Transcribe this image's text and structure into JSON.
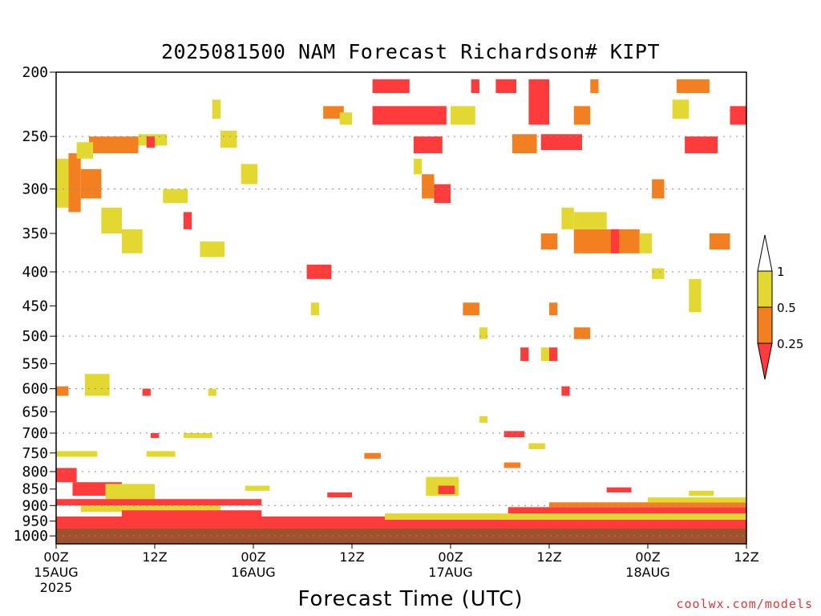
{
  "title": "2025081500 NAM Forecast Richardson# KIPT",
  "xlabel": "Forecast Time (UTC)",
  "credit": "coolwx.com/models",
  "chart_data": {
    "type": "heatmap",
    "title": "2025081500 NAM Forecast Richardson# KIPT",
    "xlabel": "Forecast Time (UTC)",
    "ylabel": "",
    "x_unit": "forecast hour",
    "xlim": [
      0,
      84
    ],
    "y_unit": "hPa",
    "ylim": [
      1000,
      200
    ],
    "y_scale": "log (pressure)",
    "grid": "dotted horizontal lines at labeled pressure levels",
    "y_ticks": [
      200,
      250,
      300,
      350,
      400,
      450,
      500,
      550,
      600,
      650,
      700,
      750,
      800,
      850,
      900,
      950,
      1000
    ],
    "y_gridlines": [
      250,
      300,
      400,
      500,
      600,
      700,
      800,
      900,
      1000
    ],
    "x_ticks": [
      {
        "hour": 0,
        "label": "00Z",
        "sub": "15AUG",
        "sub2": "2025"
      },
      {
        "hour": 12,
        "label": "12Z",
        "sub": "",
        "sub2": ""
      },
      {
        "hour": 24,
        "label": "00Z",
        "sub": "16AUG",
        "sub2": ""
      },
      {
        "hour": 36,
        "label": "12Z",
        "sub": "",
        "sub2": ""
      },
      {
        "hour": 48,
        "label": "00Z",
        "sub": "17AUG",
        "sub2": ""
      },
      {
        "hour": 60,
        "label": "12Z",
        "sub": "",
        "sub2": ""
      },
      {
        "hour": 72,
        "label": "00Z",
        "sub": "18AUG",
        "sub2": ""
      },
      {
        "hour": 84,
        "label": "12Z",
        "sub": "",
        "sub2": ""
      }
    ],
    "legend": {
      "placement": "right",
      "bins": [
        {
          "range": "< 0.25",
          "color": "#ff3b3b"
        },
        {
          "range": "0.25 - 0.5",
          "color": "#f28020"
        },
        {
          "range": "0.5 - 1",
          "color": "#e3d831"
        },
        {
          "range": "> 1",
          "color": "#ffffff"
        }
      ],
      "labels": [
        "1",
        "0.5",
        "0.25"
      ]
    },
    "colors": {
      "low": "#ff3b3b",
      "mid": "#f28020",
      "high": "#e3d831",
      "ground": "#a0522d"
    },
    "below_ground": {
      "p_min": 975,
      "p_max": 1000,
      "color": "#a0522d"
    },
    "regions": [
      {
        "x": [
          3,
          5.5
        ],
        "p": [
          280,
          310
        ],
        "bin": "mid"
      },
      {
        "x": [
          1.5,
          3
        ],
        "p": [
          265,
          325
        ],
        "bin": "mid"
      },
      {
        "x": [
          4,
          10
        ],
        "p": [
          250,
          265
        ],
        "bin": "mid"
      },
      {
        "x": [
          10,
          13.5
        ],
        "p": [
          248,
          258
        ],
        "bin": "high"
      },
      {
        "x": [
          2.5,
          4.5
        ],
        "p": [
          255,
          270
        ],
        "bin": "high"
      },
      {
        "x": [
          0,
          1.5
        ],
        "p": [
          270,
          320
        ],
        "bin": "high"
      },
      {
        "x": [
          5.5,
          8
        ],
        "p": [
          320,
          350
        ],
        "bin": "high"
      },
      {
        "x": [
          8,
          10.5
        ],
        "p": [
          345,
          375
        ],
        "bin": "high"
      },
      {
        "x": [
          11,
          12
        ],
        "p": [
          250,
          260
        ],
        "bin": "low"
      },
      {
        "x": [
          13,
          16
        ],
        "p": [
          300,
          315
        ],
        "bin": "high"
      },
      {
        "x": [
          15.5,
          16.5
        ],
        "p": [
          325,
          345
        ],
        "bin": "low"
      },
      {
        "x": [
          17.5,
          20.5
        ],
        "p": [
          360,
          380
        ],
        "bin": "high"
      },
      {
        "x": [
          19,
          20
        ],
        "p": [
          220,
          235
        ],
        "bin": "high"
      },
      {
        "x": [
          20,
          22
        ],
        "p": [
          245,
          260
        ],
        "bin": "high"
      },
      {
        "x": [
          22.5,
          24.5
        ],
        "p": [
          275,
          295
        ],
        "bin": "high"
      },
      {
        "x": [
          30.5,
          33.5
        ],
        "p": [
          390,
          410
        ],
        "bin": "low"
      },
      {
        "x": [
          38.5,
          43
        ],
        "p": [
          205,
          215
        ],
        "bin": "low"
      },
      {
        "x": [
          38.5,
          47.5
        ],
        "p": [
          225,
          240
        ],
        "bin": "low"
      },
      {
        "x": [
          32.5,
          35
        ],
        "p": [
          225,
          235
        ],
        "bin": "mid"
      },
      {
        "x": [
          34.5,
          36
        ],
        "p": [
          230,
          240
        ],
        "bin": "high"
      },
      {
        "x": [
          43.5,
          47
        ],
        "p": [
          250,
          265
        ],
        "bin": "low"
      },
      {
        "x": [
          43.5,
          44.5
        ],
        "p": [
          270,
          285
        ],
        "bin": "high"
      },
      {
        "x": [
          44.5,
          46
        ],
        "p": [
          285,
          310
        ],
        "bin": "mid"
      },
      {
        "x": [
          46,
          48
        ],
        "p": [
          295,
          315
        ],
        "bin": "low"
      },
      {
        "x": [
          48,
          51
        ],
        "p": [
          225,
          240
        ],
        "bin": "high"
      },
      {
        "x": [
          50.5,
          51.5
        ],
        "p": [
          205,
          215
        ],
        "bin": "low"
      },
      {
        "x": [
          53.5,
          56
        ],
        "p": [
          205,
          215
        ],
        "bin": "low"
      },
      {
        "x": [
          55.5,
          58.5
        ],
        "p": [
          248,
          265
        ],
        "bin": "mid"
      },
      {
        "x": [
          57.5,
          60
        ],
        "p": [
          205,
          240
        ],
        "bin": "low"
      },
      {
        "x": [
          59,
          64
        ],
        "p": [
          248,
          262
        ],
        "bin": "low"
      },
      {
        "x": [
          63,
          65
        ],
        "p": [
          225,
          240
        ],
        "bin": "mid"
      },
      {
        "x": [
          65,
          66
        ],
        "p": [
          205,
          215
        ],
        "bin": "mid"
      },
      {
        "x": [
          75.5,
          79.5
        ],
        "p": [
          205,
          215
        ],
        "bin": "mid"
      },
      {
        "x": [
          76.5,
          80.5
        ],
        "p": [
          250,
          265
        ],
        "bin": "low"
      },
      {
        "x": [
          82,
          84
        ],
        "p": [
          225,
          240
        ],
        "bin": "low"
      },
      {
        "x": [
          75,
          77
        ],
        "p": [
          220,
          235
        ],
        "bin": "high"
      },
      {
        "x": [
          59,
          61
        ],
        "p": [
          350,
          370
        ],
        "bin": "mid"
      },
      {
        "x": [
          63,
          68
        ],
        "p": [
          345,
          375
        ],
        "bin": "mid"
      },
      {
        "x": [
          68,
          71
        ],
        "p": [
          345,
          375
        ],
        "bin": "mid"
      },
      {
        "x": [
          67.5,
          68.5
        ],
        "p": [
          345,
          375
        ],
        "bin": "low"
      },
      {
        "x": [
          61.5,
          63
        ],
        "p": [
          320,
          345
        ],
        "bin": "high"
      },
      {
        "x": [
          63,
          67
        ],
        "p": [
          325,
          345
        ],
        "bin": "high"
      },
      {
        "x": [
          71,
          72.5
        ],
        "p": [
          350,
          375
        ],
        "bin": "high"
      },
      {
        "x": [
          77,
          78.5
        ],
        "p": [
          410,
          460
        ],
        "bin": "high"
      },
      {
        "x": [
          79.5,
          82
        ],
        "p": [
          350,
          370
        ],
        "bin": "mid"
      },
      {
        "x": [
          72.5,
          74
        ],
        "p": [
          395,
          410
        ],
        "bin": "high"
      },
      {
        "x": [
          72.5,
          74
        ],
        "p": [
          290,
          310
        ],
        "bin": "mid"
      },
      {
        "x": [
          49.5,
          51.5
        ],
        "p": [
          445,
          465
        ],
        "bin": "mid"
      },
      {
        "x": [
          51.5,
          52.5
        ],
        "p": [
          485,
          505
        ],
        "bin": "high"
      },
      {
        "x": [
          60,
          61
        ],
        "p": [
          445,
          465
        ],
        "bin": "mid"
      },
      {
        "x": [
          63,
          65
        ],
        "p": [
          485,
          505
        ],
        "bin": "mid"
      },
      {
        "x": [
          56.5,
          57.5
        ],
        "p": [
          520,
          545
        ],
        "bin": "low"
      },
      {
        "x": [
          59,
          60
        ],
        "p": [
          520,
          545
        ],
        "bin": "high"
      },
      {
        "x": [
          60,
          61
        ],
        "p": [
          520,
          545
        ],
        "bin": "low"
      },
      {
        "x": [
          61.5,
          62.5
        ],
        "p": [
          595,
          615
        ],
        "bin": "low"
      },
      {
        "x": [
          31,
          32
        ],
        "p": [
          445,
          465
        ],
        "bin": "high"
      },
      {
        "x": [
          0,
          1.5
        ],
        "p": [
          595,
          615
        ],
        "bin": "mid"
      },
      {
        "x": [
          3.5,
          6.5
        ],
        "p": [
          570,
          615
        ],
        "bin": "high"
      },
      {
        "x": [
          10.5,
          11.5
        ],
        "p": [
          600,
          615
        ],
        "bin": "low"
      },
      {
        "x": [
          18.5,
          19.5
        ],
        "p": [
          600,
          615
        ],
        "bin": "high"
      },
      {
        "x": [
          54.5,
          57
        ],
        "p": [
          695,
          710
        ],
        "bin": "low"
      },
      {
        "x": [
          51.5,
          52.5
        ],
        "p": [
          660,
          675
        ],
        "bin": "high"
      },
      {
        "x": [
          57.5,
          59.5
        ],
        "p": [
          725,
          740
        ],
        "bin": "high"
      },
      {
        "x": [
          15.5,
          19
        ],
        "p": [
          700,
          712
        ],
        "bin": "high"
      },
      {
        "x": [
          11.5,
          12.5
        ],
        "p": [
          700,
          712
        ],
        "bin": "low"
      },
      {
        "x": [
          0,
          5
        ],
        "p": [
          745,
          760
        ],
        "bin": "high"
      },
      {
        "x": [
          11,
          14.5
        ],
        "p": [
          745,
          760
        ],
        "bin": "high"
      },
      {
        "x": [
          37.5,
          39.5
        ],
        "p": [
          750,
          765
        ],
        "bin": "mid"
      },
      {
        "x": [
          54.5,
          56.5
        ],
        "p": [
          775,
          790
        ],
        "bin": "mid"
      },
      {
        "x": [
          0,
          2.5
        ],
        "p": [
          790,
          830
        ],
        "bin": "low"
      },
      {
        "x": [
          2,
          8
        ],
        "p": [
          830,
          870
        ],
        "bin": "low"
      },
      {
        "x": [
          6,
          12
        ],
        "p": [
          835,
          880
        ],
        "bin": "high"
      },
      {
        "x": [
          45,
          49
        ],
        "p": [
          815,
          870
        ],
        "bin": "high"
      },
      {
        "x": [
          46.5,
          48.5
        ],
        "p": [
          840,
          865
        ],
        "bin": "low"
      },
      {
        "x": [
          23,
          26
        ],
        "p": [
          840,
          855
        ],
        "bin": "high"
      },
      {
        "x": [
          33,
          36
        ],
        "p": [
          860,
          875
        ],
        "bin": "low"
      },
      {
        "x": [
          67,
          70
        ],
        "p": [
          845,
          860
        ],
        "bin": "low"
      },
      {
        "x": [
          77,
          80
        ],
        "p": [
          855,
          870
        ],
        "bin": "high"
      },
      {
        "x": [
          0,
          25
        ],
        "p": [
          880,
          900
        ],
        "bin": "low"
      },
      {
        "x": [
          3,
          20
        ],
        "p": [
          900,
          920
        ],
        "bin": "high"
      },
      {
        "x": [
          8,
          25
        ],
        "p": [
          915,
          935
        ],
        "bin": "low"
      },
      {
        "x": [
          25,
          84
        ],
        "p": [
          945,
          975
        ],
        "bin": "low"
      },
      {
        "x": [
          40,
          84
        ],
        "p": [
          925,
          945
        ],
        "bin": "high"
      },
      {
        "x": [
          55,
          84
        ],
        "p": [
          905,
          925
        ],
        "bin": "low"
      },
      {
        "x": [
          60,
          84
        ],
        "p": [
          890,
          905
        ],
        "bin": "mid"
      },
      {
        "x": [
          72,
          84
        ],
        "p": [
          875,
          890
        ],
        "bin": "high"
      },
      {
        "x": [
          0,
          40
        ],
        "p": [
          935,
          975
        ],
        "bin": "low"
      }
    ]
  }
}
